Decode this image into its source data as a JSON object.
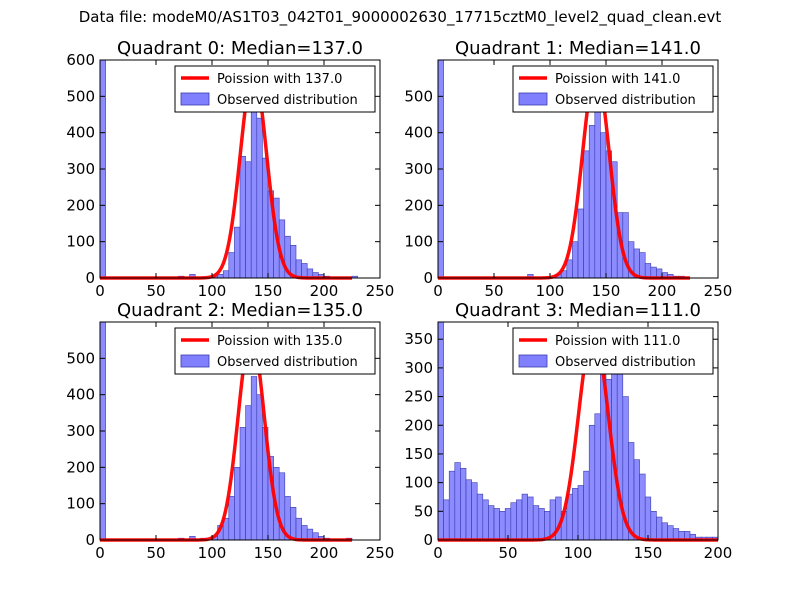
{
  "figure": {
    "title": "Data file: modeM0/AS1T03_042T01_9000002630_17715cztM0_level2_quad_clean.evt"
  },
  "colors": {
    "bar_fill": "#8080ff",
    "bar_edge": "#3a3ab0",
    "poisson_line": "#ff0000"
  },
  "chart_data": [
    {
      "type": "bar",
      "title": "Quadrant 0: Median=137.0",
      "xlim": [
        0,
        250
      ],
      "ylim": [
        0,
        600
      ],
      "xticks": [
        0,
        50,
        100,
        150,
        200,
        250
      ],
      "yticks": [
        0,
        100,
        200,
        300,
        400,
        500,
        600
      ],
      "bin_width": 5,
      "bins": [
        [
          0,
          600
        ],
        [
          70,
          5
        ],
        [
          80,
          10
        ],
        [
          100,
          5
        ],
        [
          105,
          10
        ],
        [
          110,
          20
        ],
        [
          115,
          70
        ],
        [
          120,
          140
        ],
        [
          125,
          335
        ],
        [
          130,
          320
        ],
        [
          135,
          490
        ],
        [
          140,
          440
        ],
        [
          145,
          330
        ],
        [
          150,
          240
        ],
        [
          155,
          220
        ],
        [
          160,
          160
        ],
        [
          165,
          115
        ],
        [
          170,
          90
        ],
        [
          175,
          50
        ],
        [
          180,
          40
        ],
        [
          185,
          25
        ],
        [
          190,
          15
        ],
        [
          195,
          10
        ],
        [
          200,
          5
        ],
        [
          225,
          5
        ]
      ],
      "series": [
        {
          "name": "Poission with 137.0",
          "kind": "line",
          "mean": 137,
          "peak": 565,
          "sigma": 11.7,
          "x_range": [
            0,
            225
          ]
        },
        {
          "name": "Observed distribution",
          "kind": "bars"
        }
      ],
      "legend": "top-right"
    },
    {
      "type": "bar",
      "title": "Quadrant 1: Median=141.0",
      "xlim": [
        0,
        250
      ],
      "ylim": [
        0,
        600
      ],
      "xticks": [
        0,
        50,
        100,
        150,
        200,
        250
      ],
      "yticks": [
        0,
        100,
        200,
        300,
        400,
        500
      ],
      "bin_width": 5,
      "bins": [
        [
          0,
          600
        ],
        [
          80,
          10
        ],
        [
          105,
          10
        ],
        [
          110,
          20
        ],
        [
          115,
          50
        ],
        [
          120,
          100
        ],
        [
          125,
          190
        ],
        [
          130,
          350
        ],
        [
          135,
          420
        ],
        [
          140,
          470
        ],
        [
          145,
          400
        ],
        [
          150,
          350
        ],
        [
          155,
          320
        ],
        [
          160,
          180
        ],
        [
          165,
          180
        ],
        [
          170,
          100
        ],
        [
          175,
          80
        ],
        [
          180,
          70
        ],
        [
          185,
          40
        ],
        [
          190,
          30
        ],
        [
          195,
          25
        ],
        [
          200,
          15
        ],
        [
          205,
          10
        ],
        [
          210,
          5
        ],
        [
          215,
          5
        ]
      ],
      "series": [
        {
          "name": "Poission with 141.0",
          "kind": "line",
          "mean": 141,
          "peak": 568,
          "sigma": 11.9,
          "x_range": [
            0,
            225
          ]
        },
        {
          "name": "Observed distribution",
          "kind": "bars"
        }
      ],
      "legend": "top-right"
    },
    {
      "type": "bar",
      "title": "Quadrant 2: Median=135.0",
      "xlim": [
        0,
        250
      ],
      "ylim": [
        0,
        600
      ],
      "xticks": [
        0,
        50,
        100,
        150,
        200,
        250
      ],
      "yticks": [
        0,
        100,
        200,
        300,
        400,
        500
      ],
      "bin_width": 5,
      "bins": [
        [
          0,
          600
        ],
        [
          70,
          5
        ],
        [
          80,
          10
        ],
        [
          90,
          5
        ],
        [
          100,
          10
        ],
        [
          105,
          40
        ],
        [
          110,
          60
        ],
        [
          115,
          120
        ],
        [
          120,
          200
        ],
        [
          125,
          310
        ],
        [
          130,
          370
        ],
        [
          135,
          450
        ],
        [
          140,
          400
        ],
        [
          145,
          310
        ],
        [
          150,
          230
        ],
        [
          155,
          200
        ],
        [
          160,
          185
        ],
        [
          165,
          120
        ],
        [
          170,
          90
        ],
        [
          175,
          60
        ],
        [
          180,
          40
        ],
        [
          185,
          30
        ],
        [
          190,
          20
        ],
        [
          195,
          10
        ],
        [
          200,
          5
        ],
        [
          220,
          5
        ]
      ],
      "series": [
        {
          "name": "Poission with 135.0",
          "kind": "line",
          "mean": 135,
          "peak": 565,
          "sigma": 11.6,
          "x_range": [
            0,
            225
          ]
        },
        {
          "name": "Observed distribution",
          "kind": "bars"
        }
      ],
      "legend": "top-right"
    },
    {
      "type": "bar",
      "title": "Quadrant 3: Median=111.0",
      "xlim": [
        0,
        200
      ],
      "ylim": [
        0,
        380
      ],
      "xticks": [
        0,
        50,
        100,
        150,
        200
      ],
      "yticks": [
        0,
        50,
        100,
        150,
        200,
        250,
        300,
        350
      ],
      "bin_width": 4,
      "bins": [
        [
          0,
          380
        ],
        [
          4,
          70
        ],
        [
          8,
          120
        ],
        [
          12,
          135
        ],
        [
          16,
          125
        ],
        [
          20,
          105
        ],
        [
          24,
          100
        ],
        [
          28,
          80
        ],
        [
          32,
          70
        ],
        [
          36,
          60
        ],
        [
          40,
          55
        ],
        [
          44,
          50
        ],
        [
          48,
          55
        ],
        [
          52,
          65
        ],
        [
          56,
          70
        ],
        [
          60,
          80
        ],
        [
          64,
          75
        ],
        [
          68,
          60
        ],
        [
          72,
          55
        ],
        [
          76,
          50
        ],
        [
          80,
          70
        ],
        [
          84,
          75
        ],
        [
          88,
          50
        ],
        [
          92,
          80
        ],
        [
          96,
          90
        ],
        [
          100,
          95
        ],
        [
          104,
          120
        ],
        [
          108,
          200
        ],
        [
          112,
          220
        ],
        [
          116,
          290
        ],
        [
          120,
          280
        ],
        [
          124,
          315
        ],
        [
          128,
          300
        ],
        [
          132,
          250
        ],
        [
          136,
          170
        ],
        [
          140,
          140
        ],
        [
          144,
          115
        ],
        [
          148,
          75
        ],
        [
          152,
          50
        ],
        [
          156,
          40
        ],
        [
          160,
          30
        ],
        [
          164,
          25
        ],
        [
          168,
          20
        ],
        [
          172,
          15
        ],
        [
          176,
          15
        ],
        [
          180,
          10
        ],
        [
          184,
          5
        ],
        [
          188,
          5
        ],
        [
          192,
          5
        ],
        [
          196,
          5
        ]
      ],
      "series": [
        {
          "name": "Poission with 111.0",
          "kind": "line",
          "mean": 111,
          "peak": 365,
          "sigma": 10.5,
          "x_range": [
            0,
            200
          ]
        },
        {
          "name": "Observed distribution",
          "kind": "bars"
        }
      ],
      "legend": "top-right"
    }
  ]
}
